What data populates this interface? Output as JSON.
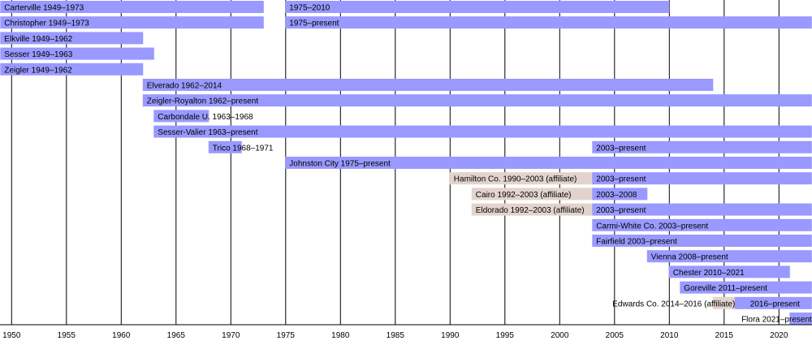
{
  "chart_data": {
    "type": "timeline",
    "xlim": [
      1949,
      2023
    ],
    "grid": true,
    "colors": {
      "member": "#9999ff",
      "affiliate": "#e2d4cc",
      "grid": "#000000"
    },
    "ticks": [
      "1950",
      "1955",
      "1960",
      "1965",
      "1970",
      "1975",
      "1980",
      "1985",
      "1990",
      "1995",
      "2000",
      "2005",
      "2010",
      "2015",
      "2020"
    ],
    "rows": [
      [
        {
          "start": 1949,
          "end": 1973,
          "kind": "member",
          "label": "Carterville 1949–1973"
        },
        {
          "start": 1975,
          "end": 2010,
          "kind": "member",
          "label": "1975–2010"
        }
      ],
      [
        {
          "start": 1949,
          "end": 1973,
          "kind": "member",
          "label": "Christopher 1949–1973"
        },
        {
          "start": 1975,
          "end": "present",
          "kind": "member",
          "label": "1975–present"
        }
      ],
      [
        {
          "start": 1949,
          "end": 1962,
          "kind": "member",
          "label": "Elkville 1949–1962"
        }
      ],
      [
        {
          "start": 1949,
          "end": 1963,
          "kind": "member",
          "label": "Sesser 1949–1963"
        }
      ],
      [
        {
          "start": 1949,
          "end": 1962,
          "kind": "member",
          "label": "Zeigler 1949–1962"
        }
      ],
      [
        {
          "start": 1962,
          "end": 2014,
          "kind": "member",
          "label": "Elverado 1962–2014"
        }
      ],
      [
        {
          "start": 1962,
          "end": "present",
          "kind": "member",
          "label": "Zeigler-Royalton 1962–present"
        }
      ],
      [
        {
          "start": 1963,
          "end": 1968,
          "kind": "member",
          "label": "Carbondale U. 1963–1968"
        }
      ],
      [
        {
          "start": 1963,
          "end": "present",
          "kind": "member",
          "label": "Sesser-Valier 1963–present"
        }
      ],
      [
        {
          "start": 1968,
          "end": 1971,
          "kind": "member",
          "label": "Trico 1968–1971"
        },
        {
          "start": 2003,
          "end": "present",
          "kind": "member",
          "label": "2003–present"
        }
      ],
      [
        {
          "start": 1975,
          "end": "present",
          "kind": "member",
          "label": "Johnston City 1975–present"
        }
      ],
      [
        {
          "start": 1990,
          "end": 2003,
          "kind": "affiliate",
          "label": "Hamilton Co. 1990–2003 (affiliate)"
        },
        {
          "start": 2003,
          "end": "present",
          "kind": "member",
          "label": "2003–present"
        }
      ],
      [
        {
          "start": 1992,
          "end": 2003,
          "kind": "affiliate",
          "label": "Cairo 1992–2003 (affiliate)"
        },
        {
          "start": 2003,
          "end": 2008,
          "kind": "member",
          "label": "2003–2008"
        }
      ],
      [
        {
          "start": 1992,
          "end": 2003,
          "kind": "affiliate",
          "label": "Eldorado 1992–2003 (affiliate)"
        },
        {
          "start": 2003,
          "end": "present",
          "kind": "member",
          "label": "2003–present"
        }
      ],
      [
        {
          "start": 2003,
          "end": "present",
          "kind": "member",
          "label": "Carmi-White Co. 2003–present"
        }
      ],
      [
        {
          "start": 2003,
          "end": "present",
          "kind": "member",
          "label": "Fairfield 2003–present"
        }
      ],
      [
        {
          "start": 2008,
          "end": "present",
          "kind": "member",
          "label": "Vienna 2008–present"
        }
      ],
      [
        {
          "start": 2010,
          "end": 2021,
          "kind": "member",
          "label": "Chester 2010–2021"
        }
      ],
      [
        {
          "start": 2011,
          "end": "present",
          "kind": "member",
          "label": "Goreville 2011–present"
        }
      ],
      [
        {
          "start": 2014,
          "end": 2016,
          "kind": "affiliate",
          "label": "Edwards Co. 2014–2016 (affiliate)"
        },
        {
          "start": 2016,
          "end": "present",
          "kind": "member",
          "label": "2016–present"
        }
      ],
      [
        {
          "start": 2021,
          "end": "present",
          "kind": "member",
          "label": "Flora 2021–present"
        }
      ]
    ]
  }
}
